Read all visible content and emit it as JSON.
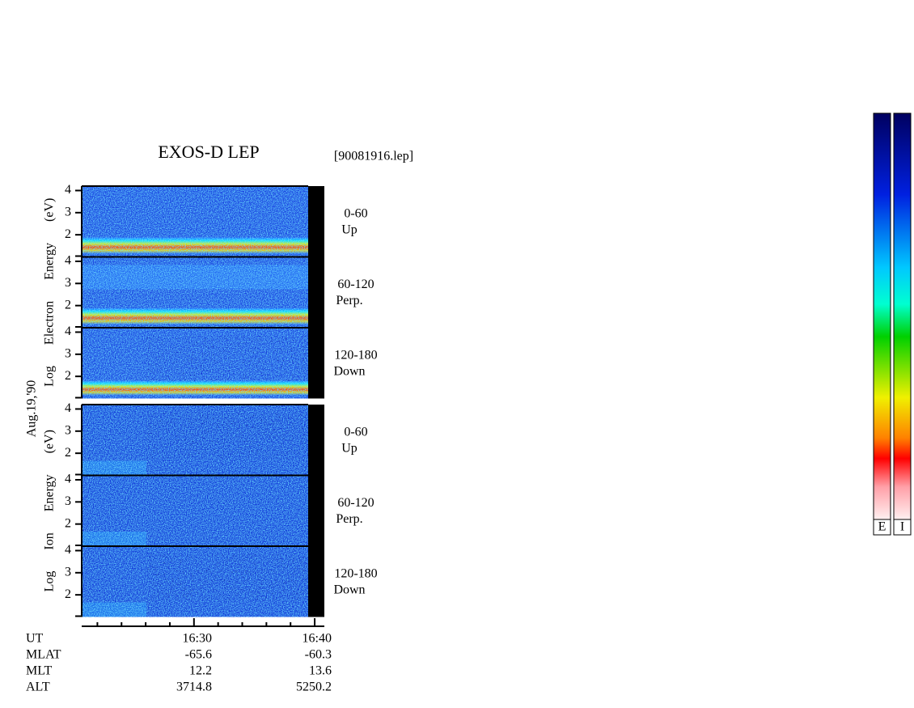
{
  "header": {
    "title": "EXOS-D LEP",
    "file": "[90081916.lep]"
  },
  "date": "Aug.19,'90",
  "sections": [
    {
      "axis_label": "Log Electron Energy (eV)",
      "panels": [
        {
          "angle": "0-60",
          "direction": "Up"
        },
        {
          "angle": "60-120",
          "direction": "Perp."
        },
        {
          "angle": "120-180",
          "direction": "Down"
        }
      ]
    },
    {
      "axis_label": "Log Ion Energy (eV)",
      "panels": [
        {
          "angle": "0-60",
          "direction": "Up"
        },
        {
          "angle": "60-120",
          "direction": "Perp."
        },
        {
          "angle": "120-180",
          "direction": "Down"
        }
      ]
    }
  ],
  "energy_axis": {
    "ylim": [
      1,
      4.2
    ],
    "yticks": [
      2,
      3,
      4
    ]
  },
  "time_axis": {
    "xlim": [
      20.7,
      40.8
    ],
    "xticks": [
      {
        "value": 30,
        "label": "16:30"
      },
      {
        "value": 40,
        "label": "16:40"
      }
    ],
    "minor_ticks": [
      22,
      24,
      26,
      28,
      32,
      34,
      36,
      38
    ]
  },
  "orbit": {
    "rows": [
      {
        "label": "UT"
      },
      {
        "label": "MLAT",
        "values": [
          "-65.6",
          "-60.3"
        ]
      },
      {
        "label": "MLT",
        "values": [
          "12.2",
          "13.6"
        ]
      },
      {
        "label": "ALT",
        "values": [
          "3714.8",
          "5250.2"
        ]
      }
    ]
  },
  "colorbars": [
    "E",
    "I"
  ]
}
